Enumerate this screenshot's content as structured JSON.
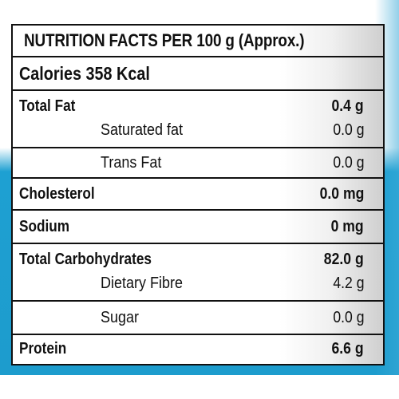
{
  "title": "NUTRITION FACTS PER 100 g (Approx.)",
  "calories": "Calories 358 Kcal",
  "rows": {
    "total_fat": {
      "label": "Total Fat",
      "value": "0.4 g"
    },
    "saturated_fat": {
      "label": "Saturated fat",
      "value": "0.0 g"
    },
    "trans_fat": {
      "label": "Trans Fat",
      "value": "0.0 g"
    },
    "cholesterol": {
      "label": "Cholesterol",
      "value": "0.0 mg"
    },
    "sodium": {
      "label": "Sodium",
      "value": "0 mg"
    },
    "total_carbohydrates": {
      "label": "Total Carbohydrates",
      "value": "82.0 g"
    },
    "dietary_fibre": {
      "label": "Dietary Fibre",
      "value": "4.2 g"
    },
    "sugar": {
      "label": "Sugar",
      "value": "0.0 g"
    },
    "protein": {
      "label": "Protein",
      "value": "6.6 g"
    }
  },
  "colors": {
    "background_accent": "#1ea0d2",
    "border": "#111111"
  }
}
